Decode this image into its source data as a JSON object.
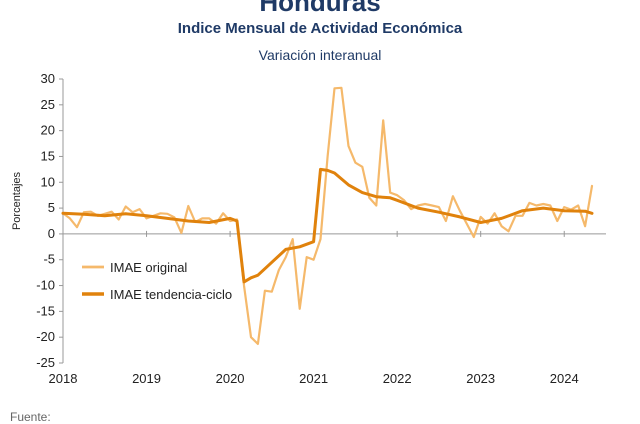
{
  "header": {
    "title": "Honduras",
    "subtitle": "Indice Mensual de  Actividad Económica",
    "caption": "Variación interanual"
  },
  "footer": {
    "source_label": "Fuente:"
  },
  "chart_data": {
    "type": "line",
    "ylabel": "Porcentajes",
    "ylim": [
      -25,
      30
    ],
    "yticks": [
      30,
      25,
      20,
      15,
      10,
      5,
      0,
      -5,
      -10,
      -15,
      -20,
      -25
    ],
    "xlim": [
      2018,
      2024.5
    ],
    "xticks": [
      "2018",
      "2019",
      "2020",
      "2021",
      "2022",
      "2023",
      "2024"
    ],
    "grid": false,
    "legend_position": "lower-left",
    "colors": {
      "original": "#f5b96b",
      "trend": "#e0820c",
      "axis": "#999999"
    },
    "series": [
      {
        "name": "IMAE original",
        "x": [
          2018.0,
          2018.083,
          2018.167,
          2018.25,
          2018.333,
          2018.417,
          2018.5,
          2018.583,
          2018.667,
          2018.75,
          2018.833,
          2018.917,
          2019.0,
          2019.083,
          2019.167,
          2019.25,
          2019.333,
          2019.417,
          2019.5,
          2019.583,
          2019.667,
          2019.75,
          2019.833,
          2019.917,
          2020.0,
          2020.083,
          2020.167,
          2020.25,
          2020.333,
          2020.417,
          2020.5,
          2020.583,
          2020.667,
          2020.75,
          2020.833,
          2020.917,
          2021.0,
          2021.083,
          2021.167,
          2021.25,
          2021.333,
          2021.417,
          2021.5,
          2021.583,
          2021.667,
          2021.75,
          2021.833,
          2021.917,
          2022.0,
          2022.083,
          2022.167,
          2022.25,
          2022.333,
          2022.417,
          2022.5,
          2022.583,
          2022.667,
          2022.75,
          2022.833,
          2022.917,
          2023.0,
          2023.083,
          2023.167,
          2023.25,
          2023.333,
          2023.417,
          2023.5,
          2023.583,
          2023.667,
          2023.75,
          2023.833,
          2023.917,
          2024.0,
          2024.083,
          2024.167,
          2024.25,
          2024.333
        ],
        "values": [
          4.0,
          3.0,
          1.3,
          4.2,
          4.3,
          3.5,
          3.9,
          4.3,
          2.8,
          5.3,
          4.2,
          4.8,
          3.0,
          3.5,
          4.0,
          3.9,
          3.2,
          0.2,
          5.4,
          2.3,
          3.0,
          3.0,
          2.0,
          4.0,
          2.5,
          2.8,
          -10.0,
          -20.0,
          -21.3,
          -11.0,
          -11.2,
          -7.0,
          -4.5,
          -1.0,
          -14.5,
          -4.5,
          -5.0,
          -1.0,
          15.0,
          28.2,
          28.3,
          17.0,
          13.8,
          13.0,
          7.0,
          5.5,
          22.0,
          8.0,
          7.5,
          6.5,
          4.8,
          5.5,
          5.8,
          5.5,
          5.2,
          2.5,
          7.3,
          4.5,
          2.0,
          -0.6,
          3.3,
          2.0,
          4.0,
          1.5,
          0.5,
          3.5,
          3.5,
          6.0,
          5.5,
          5.8,
          5.5,
          2.5,
          5.2,
          4.7,
          5.5,
          1.5,
          9.3
        ]
      },
      {
        "name": "IMAE tendencia-ciclo",
        "x": [
          2018.0,
          2018.25,
          2018.5,
          2018.75,
          2019.0,
          2019.25,
          2019.5,
          2019.75,
          2020.0,
          2020.083,
          2020.167,
          2020.25,
          2020.333,
          2020.5,
          2020.667,
          2020.833,
          2021.0,
          2021.083,
          2021.167,
          2021.25,
          2021.417,
          2021.583,
          2021.75,
          2021.917,
          2022.0,
          2022.25,
          2022.5,
          2022.75,
          2023.0,
          2023.25,
          2023.5,
          2023.75,
          2024.0,
          2024.25,
          2024.333
        ],
        "values": [
          4.0,
          3.8,
          3.5,
          3.9,
          3.5,
          3.0,
          2.5,
          2.2,
          3.0,
          2.5,
          -9.3,
          -8.5,
          -8.0,
          -5.5,
          -3.0,
          -2.5,
          -1.5,
          12.5,
          12.3,
          11.8,
          9.5,
          8.0,
          7.2,
          7.0,
          6.5,
          5.0,
          4.2,
          3.3,
          2.2,
          3.0,
          4.5,
          5.0,
          4.5,
          4.4,
          4.0
        ]
      }
    ]
  }
}
